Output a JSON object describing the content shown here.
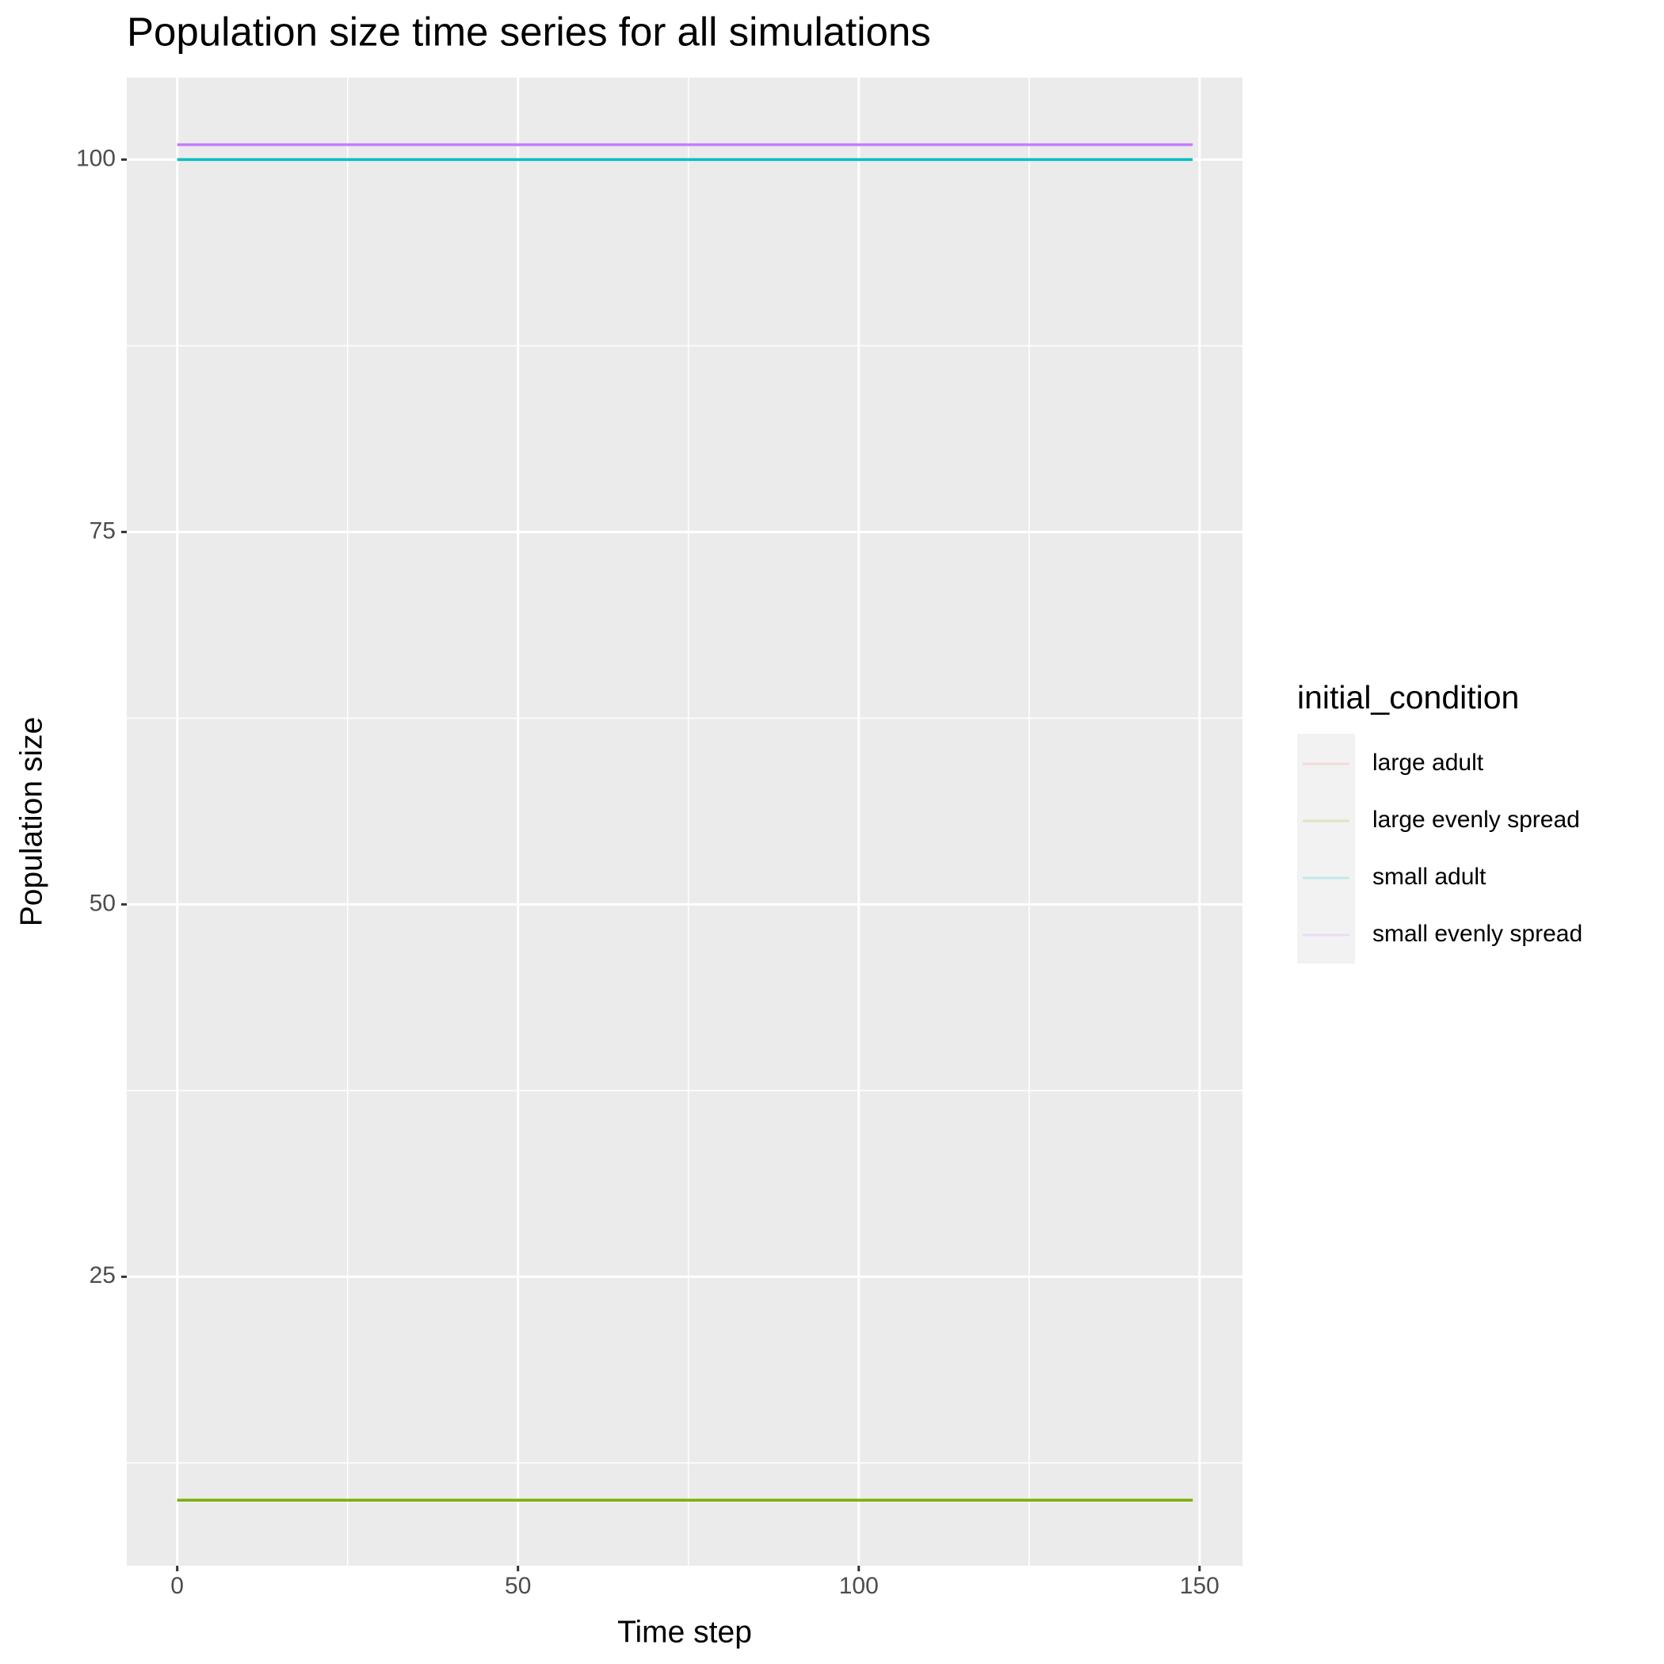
{
  "chart_data": {
    "type": "line",
    "title": "Population size time series for all simulations",
    "x_label": "Time step",
    "y_label": "Population size",
    "legend_title": "initial_condition",
    "legend_position": "right",
    "grid": true,
    "x": [
      0,
      149
    ],
    "series": [
      {
        "name": "large adult",
        "color": "#F8766D",
        "values": [
          10,
          10
        ]
      },
      {
        "name": "large evenly spread",
        "color": "#7CAE00",
        "values": [
          10,
          10
        ]
      },
      {
        "name": "small adult",
        "color": "#00BFC4",
        "values": [
          100,
          100
        ]
      },
      {
        "name": "small evenly spread",
        "color": "#C77CFF",
        "values": [
          101,
          101
        ]
      }
    ],
    "xlim": [
      -7.4,
      156.3
    ],
    "xticks": [
      0,
      50,
      100,
      150
    ],
    "minor_xticks": [
      25,
      75,
      125
    ],
    "ylim": [
      5.6,
      105.5
    ],
    "yticks": [
      25,
      50,
      75,
      100
    ],
    "minor_yticks": [
      12.5,
      37.5,
      62.5,
      87.5
    ]
  }
}
